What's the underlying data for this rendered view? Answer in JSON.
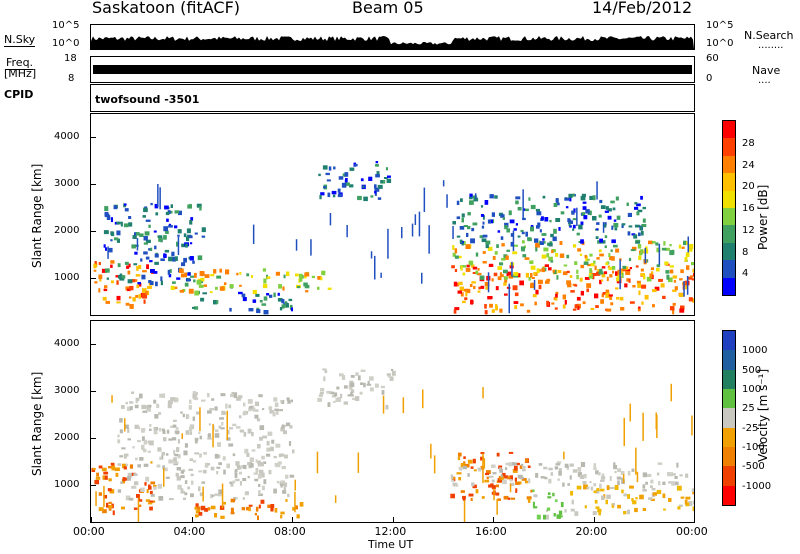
{
  "header": {
    "title": "Saskatoon (fitACF)",
    "beam": "Beam 05",
    "date": "14/Feb/2012"
  },
  "nsky_panel": {
    "left_label": "N.Sky",
    "left_ticks": [
      "10^5",
      "10^0"
    ],
    "right_ticks": [
      "10^5",
      "10^0"
    ],
    "right_label": "N.Search",
    "right_label_dots": "........"
  },
  "freq_panel": {
    "left_label_line1": "Freq.",
    "left_label_line2": "[MHz]",
    "left_ticks": [
      "18",
      "8"
    ],
    "right_ticks": [
      "60",
      "0"
    ],
    "right_label": "Nave",
    "right_label_dots": "...."
  },
  "cpid_panel": {
    "label": "CPID",
    "program": "twofsound -3501"
  },
  "chart_data": [
    {
      "type": "heatmap",
      "name": "power",
      "ylabel": "Slant Range [km]",
      "yticks": [
        "4000",
        "3000",
        "2000",
        "1000"
      ],
      "ylim": [
        200,
        4500
      ],
      "colorbar_label": "Power [dB]",
      "colorbar_ticks": [
        "28",
        "24",
        "20",
        "16",
        "12",
        "8",
        "4"
      ],
      "colorbar_colors": [
        "#ff0000",
        "#ff4000",
        "#ff8000",
        "#ffc000",
        "#f0e000",
        "#80d040",
        "#40a060",
        "#208070",
        "#2050c0",
        "#0000ff"
      ],
      "bands": [
        {
          "t_start": 0.0,
          "t_end": 2.5,
          "r_min": 400,
          "r_max": 1400,
          "level": "high"
        },
        {
          "t_start": 0.5,
          "t_end": 4.5,
          "r_min": 900,
          "r_max": 2600,
          "level": "low"
        },
        {
          "t_start": 3.0,
          "t_end": 9.5,
          "r_min": 700,
          "r_max": 1200,
          "level": "mid"
        },
        {
          "t_start": 4.0,
          "t_end": 8.0,
          "r_min": 300,
          "r_max": 700,
          "level": "low"
        },
        {
          "t_start": 9.0,
          "t_end": 12.0,
          "r_min": 2700,
          "r_max": 3500,
          "level": "low"
        },
        {
          "t_start": 14.3,
          "t_end": 24.0,
          "r_min": 300,
          "r_max": 1300,
          "level": "high"
        },
        {
          "t_start": 14.3,
          "t_end": 24.0,
          "r_min": 1000,
          "r_max": 1800,
          "level": "mid"
        },
        {
          "t_start": 14.3,
          "t_end": 22.0,
          "r_min": 1700,
          "r_max": 2800,
          "level": "low"
        }
      ]
    },
    {
      "type": "heatmap",
      "name": "velocity",
      "ylabel": "Slant Range [km]",
      "xlabel": "Time UT",
      "yticks": [
        "4000",
        "3000",
        "2000",
        "1000"
      ],
      "ylim": [
        200,
        4500
      ],
      "xticks": [
        "00:00",
        "04:00",
        "08:00",
        "12:00",
        "16:00",
        "20:00",
        "00:00"
      ],
      "xlim_hours": [
        0,
        24
      ],
      "colorbar_label": "Velocity [m s⁻¹]",
      "colorbar_ticks": [
        "1000",
        "500",
        "100",
        "25",
        "-25",
        "-100",
        "-500",
        "-1000"
      ],
      "colorbar_colors": [
        "#2040c0",
        "#2060a0",
        "#208060",
        "#60c040",
        "#c8c8c0",
        "#f0a000",
        "#f08000",
        "#f04000",
        "#ff0000"
      ],
      "bands": [
        {
          "t_start": 0.0,
          "t_end": 2.5,
          "r_min": 400,
          "r_max": 1500,
          "level": "orange"
        },
        {
          "t_start": 1.0,
          "t_end": 8.0,
          "r_min": 700,
          "r_max": 3000,
          "level": "gray"
        },
        {
          "t_start": 4.0,
          "t_end": 8.5,
          "r_min": 300,
          "r_max": 700,
          "level": "orange"
        },
        {
          "t_start": 9.0,
          "t_end": 12.0,
          "r_min": 2700,
          "r_max": 3500,
          "level": "gray"
        },
        {
          "t_start": 14.3,
          "t_end": 17.5,
          "r_min": 700,
          "r_max": 1700,
          "level": "orange"
        },
        {
          "t_start": 14.3,
          "t_end": 24.0,
          "r_min": 1000,
          "r_max": 1500,
          "level": "gray"
        },
        {
          "t_start": 17.5,
          "t_end": 19.0,
          "r_min": 300,
          "r_max": 900,
          "level": "green"
        },
        {
          "t_start": 19.0,
          "t_end": 24.0,
          "r_min": 400,
          "r_max": 1000,
          "level": "yellow"
        }
      ]
    }
  ]
}
